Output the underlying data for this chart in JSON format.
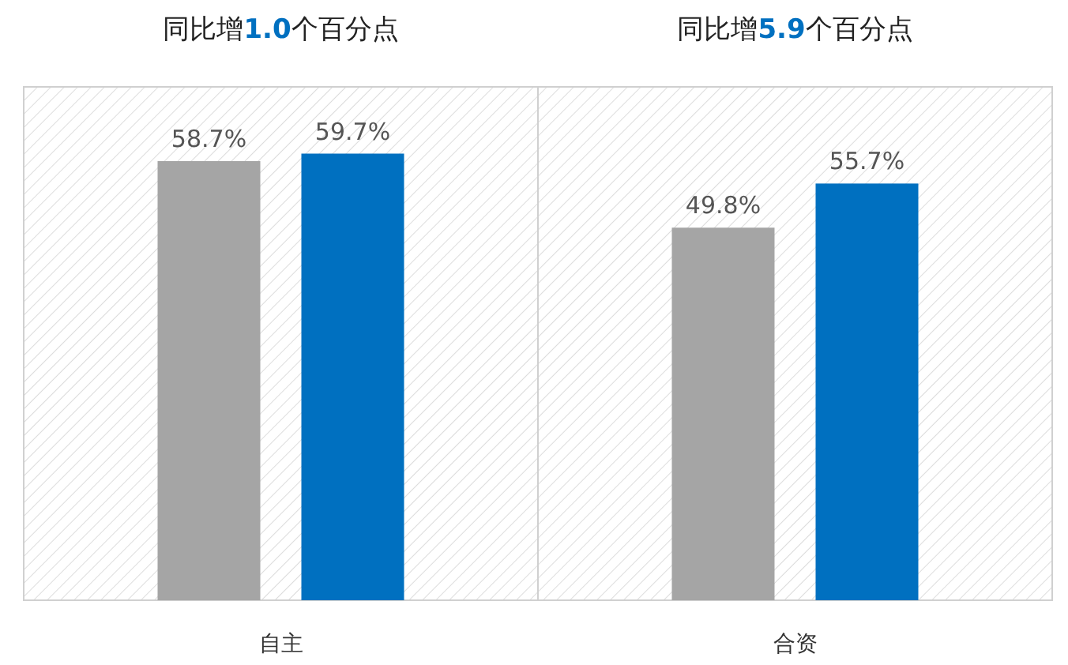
{
  "chart_data": {
    "type": "bar",
    "categories": [
      "自主",
      "合资"
    ],
    "series": [
      {
        "color": "#a5a5a5",
        "values": [
          58.7,
          49.8
        ],
        "value_labels": [
          "58.7%",
          "49.8%"
        ]
      },
      {
        "color": "#0070c0",
        "values": [
          59.7,
          55.7
        ],
        "value_labels": [
          "59.7%",
          "55.7%"
        ]
      }
    ],
    "tick_labels": "x",
    "annotations": [
      "同比增1.0个百分点",
      "同比增5.9个百分点"
    ]
  }
}
